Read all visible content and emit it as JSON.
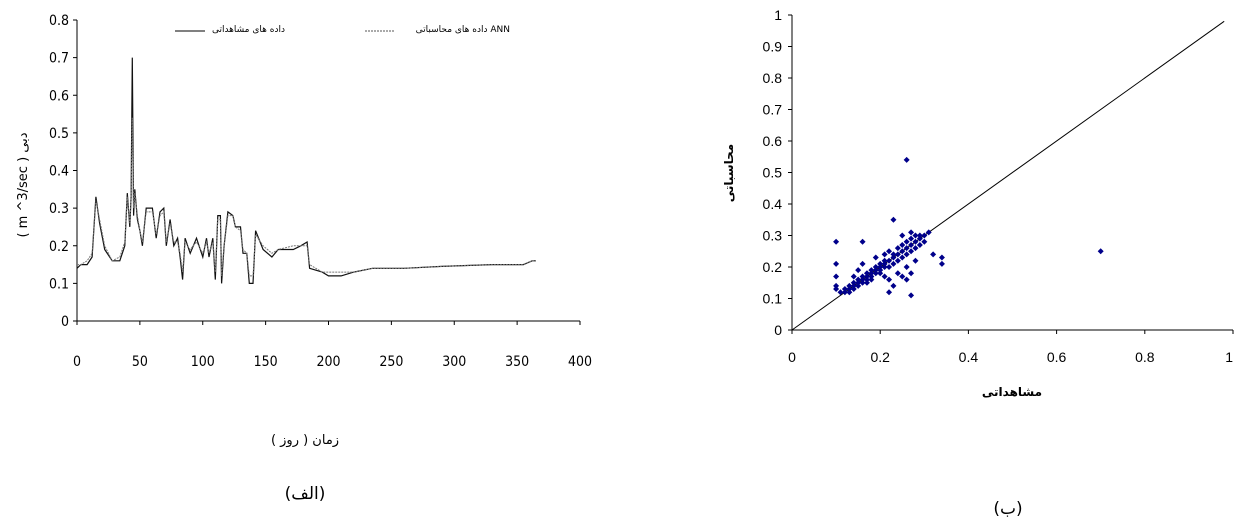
{
  "chart_data": [
    {
      "type": "line",
      "caption": "(الف)",
      "xlabel": "زمان ( روز )",
      "ylabel": "( m ^3/sec ) دبی",
      "xlim": [
        0,
        400
      ],
      "ylim": [
        0,
        0.8
      ],
      "xticks": [
        "0",
        "50",
        "100",
        "150",
        "200",
        "250",
        "300",
        "350",
        "400"
      ],
      "yticks": [
        "0",
        "0.1",
        "0.2",
        "0.3",
        "0.4",
        "0.5",
        "0.6",
        "0.7",
        "0.8"
      ],
      "series": [
        {
          "name": "داده های مشاهداتی",
          "points": [
            [
              0,
              0.14
            ],
            [
              3,
              0.15
            ],
            [
              8,
              0.15
            ],
            [
              12,
              0.17
            ],
            [
              15,
              0.33
            ],
            [
              18,
              0.26
            ],
            [
              22,
              0.19
            ],
            [
              28,
              0.16
            ],
            [
              34,
              0.16
            ],
            [
              38,
              0.2
            ],
            [
              40,
              0.34
            ],
            [
              42,
              0.25
            ],
            [
              43,
              0.33
            ],
            [
              44,
              0.7
            ],
            [
              45,
              0.28
            ],
            [
              46,
              0.35
            ],
            [
              48,
              0.27
            ],
            [
              50,
              0.24
            ],
            [
              52,
              0.2
            ],
            [
              55,
              0.3
            ],
            [
              60,
              0.3
            ],
            [
              63,
              0.22
            ],
            [
              66,
              0.29
            ],
            [
              69,
              0.3
            ],
            [
              71,
              0.2
            ],
            [
              74,
              0.27
            ],
            [
              77,
              0.2
            ],
            [
              80,
              0.22
            ],
            [
              82,
              0.17
            ],
            [
              84,
              0.11
            ],
            [
              86,
              0.22
            ],
            [
              90,
              0.18
            ],
            [
              95,
              0.22
            ],
            [
              100,
              0.17
            ],
            [
              103,
              0.22
            ],
            [
              105,
              0.17
            ],
            [
              108,
              0.22
            ],
            [
              110,
              0.11
            ],
            [
              112,
              0.28
            ],
            [
              114,
              0.28
            ],
            [
              115,
              0.1
            ],
            [
              117,
              0.2
            ],
            [
              120,
              0.29
            ],
            [
              124,
              0.28
            ],
            [
              126,
              0.25
            ],
            [
              130,
              0.25
            ],
            [
              132,
              0.18
            ],
            [
              135,
              0.18
            ],
            [
              137,
              0.1
            ],
            [
              140,
              0.1
            ],
            [
              142,
              0.24
            ],
            [
              148,
              0.19
            ],
            [
              155,
              0.17
            ],
            [
              160,
              0.19
            ],
            [
              172,
              0.19
            ],
            [
              178,
              0.2
            ],
            [
              183,
              0.21
            ],
            [
              185,
              0.14
            ],
            [
              195,
              0.13
            ],
            [
              200,
              0.12
            ],
            [
              210,
              0.12
            ],
            [
              220,
              0.13
            ],
            [
              235,
              0.14
            ],
            [
              240,
              0.14
            ],
            [
              260,
              0.14
            ],
            [
              290,
              0.145
            ],
            [
              330,
              0.15
            ],
            [
              355,
              0.15
            ],
            [
              362,
              0.16
            ],
            [
              365,
              0.16
            ]
          ]
        },
        {
          "name": "داده های محاسباتی ANN",
          "points": [
            [
              0,
              0.15
            ],
            [
              3,
              0.15
            ],
            [
              8,
              0.16
            ],
            [
              12,
              0.18
            ],
            [
              15,
              0.32
            ],
            [
              18,
              0.27
            ],
            [
              22,
              0.2
            ],
            [
              28,
              0.16
            ],
            [
              34,
              0.17
            ],
            [
              38,
              0.21
            ],
            [
              40,
              0.33
            ],
            [
              42,
              0.26
            ],
            [
              43,
              0.32
            ],
            [
              44,
              0.54
            ],
            [
              45,
              0.3
            ],
            [
              46,
              0.34
            ],
            [
              48,
              0.28
            ],
            [
              50,
              0.24
            ],
            [
              52,
              0.21
            ],
            [
              55,
              0.29
            ],
            [
              60,
              0.29
            ],
            [
              63,
              0.23
            ],
            [
              66,
              0.28
            ],
            [
              69,
              0.29
            ],
            [
              71,
              0.21
            ],
            [
              74,
              0.26
            ],
            [
              77,
              0.21
            ],
            [
              80,
              0.21
            ],
            [
              82,
              0.18
            ],
            [
              84,
              0.13
            ],
            [
              86,
              0.21
            ],
            [
              90,
              0.19
            ],
            [
              95,
              0.21
            ],
            [
              100,
              0.18
            ],
            [
              103,
              0.21
            ],
            [
              105,
              0.18
            ],
            [
              108,
              0.21
            ],
            [
              110,
              0.13
            ],
            [
              112,
              0.27
            ],
            [
              114,
              0.27
            ],
            [
              115,
              0.12
            ],
            [
              117,
              0.2
            ],
            [
              120,
              0.28
            ],
            [
              124,
              0.28
            ],
            [
              126,
              0.25
            ],
            [
              130,
              0.24
            ],
            [
              132,
              0.19
            ],
            [
              135,
              0.18
            ],
            [
              137,
              0.12
            ],
            [
              140,
              0.12
            ],
            [
              142,
              0.23
            ],
            [
              148,
              0.2
            ],
            [
              155,
              0.18
            ],
            [
              160,
              0.19
            ],
            [
              172,
              0.2
            ],
            [
              178,
              0.2
            ],
            [
              183,
              0.2
            ],
            [
              185,
              0.15
            ],
            [
              195,
              0.13
            ],
            [
              200,
              0.13
            ],
            [
              210,
              0.13
            ],
            [
              220,
              0.13
            ],
            [
              235,
              0.14
            ],
            [
              240,
              0.14
            ],
            [
              260,
              0.14
            ],
            [
              290,
              0.145
            ],
            [
              330,
              0.15
            ],
            [
              355,
              0.15
            ],
            [
              362,
              0.16
            ],
            [
              365,
              0.16
            ]
          ]
        }
      ]
    },
    {
      "type": "scatter",
      "caption": "(ب)",
      "xlabel": "مشاهداتی",
      "ylabel": "محاسباتی",
      "xlim": [
        0,
        1
      ],
      "ylim": [
        0,
        1
      ],
      "xticks": [
        "0",
        "0.2",
        "0.4",
        "0.6",
        "0.8",
        "1"
      ],
      "yticks": [
        "0",
        "0.1",
        "0.2",
        "0.3",
        "0.4",
        "0.5",
        "0.6",
        "0.7",
        "0.8",
        "0.9",
        "1"
      ],
      "reference_line": [
        [
          0,
          0
        ],
        [
          0.98,
          0.98
        ]
      ],
      "marker_color": "#00008B",
      "points": [
        [
          0.1,
          0.28
        ],
        [
          0.1,
          0.21
        ],
        [
          0.1,
          0.17
        ],
        [
          0.1,
          0.14
        ],
        [
          0.1,
          0.13
        ],
        [
          0.11,
          0.12
        ],
        [
          0.12,
          0.12
        ],
        [
          0.12,
          0.13
        ],
        [
          0.13,
          0.12
        ],
        [
          0.13,
          0.13
        ],
        [
          0.13,
          0.14
        ],
        [
          0.14,
          0.13
        ],
        [
          0.14,
          0.14
        ],
        [
          0.14,
          0.15
        ],
        [
          0.14,
          0.17
        ],
        [
          0.15,
          0.14
        ],
        [
          0.15,
          0.15
        ],
        [
          0.15,
          0.16
        ],
        [
          0.15,
          0.19
        ],
        [
          0.16,
          0.15
        ],
        [
          0.16,
          0.16
        ],
        [
          0.16,
          0.17
        ],
        [
          0.16,
          0.21
        ],
        [
          0.16,
          0.28
        ],
        [
          0.17,
          0.16
        ],
        [
          0.17,
          0.17
        ],
        [
          0.17,
          0.18
        ],
        [
          0.17,
          0.15
        ],
        [
          0.18,
          0.17
        ],
        [
          0.18,
          0.18
        ],
        [
          0.18,
          0.19
        ],
        [
          0.18,
          0.16
        ],
        [
          0.19,
          0.18
        ],
        [
          0.19,
          0.19
        ],
        [
          0.19,
          0.2
        ],
        [
          0.19,
          0.23
        ],
        [
          0.2,
          0.19
        ],
        [
          0.2,
          0.2
        ],
        [
          0.2,
          0.21
        ],
        [
          0.2,
          0.18
        ],
        [
          0.21,
          0.17
        ],
        [
          0.21,
          0.2
        ],
        [
          0.21,
          0.21
        ],
        [
          0.21,
          0.22
        ],
        [
          0.21,
          0.24
        ],
        [
          0.22,
          0.2
        ],
        [
          0.22,
          0.22
        ],
        [
          0.22,
          0.25
        ],
        [
          0.22,
          0.12
        ],
        [
          0.22,
          0.16
        ],
        [
          0.23,
          0.21
        ],
        [
          0.23,
          0.23
        ],
        [
          0.23,
          0.24
        ],
        [
          0.23,
          0.35
        ],
        [
          0.23,
          0.14
        ],
        [
          0.24,
          0.22
        ],
        [
          0.24,
          0.24
        ],
        [
          0.24,
          0.26
        ],
        [
          0.24,
          0.18
        ],
        [
          0.25,
          0.23
        ],
        [
          0.25,
          0.25
        ],
        [
          0.25,
          0.27
        ],
        [
          0.25,
          0.3
        ],
        [
          0.25,
          0.17
        ],
        [
          0.26,
          0.54
        ],
        [
          0.26,
          0.24
        ],
        [
          0.26,
          0.26
        ],
        [
          0.26,
          0.28
        ],
        [
          0.26,
          0.2
        ],
        [
          0.26,
          0.16
        ],
        [
          0.27,
          0.25
        ],
        [
          0.27,
          0.27
        ],
        [
          0.27,
          0.29
        ],
        [
          0.27,
          0.31
        ],
        [
          0.27,
          0.11
        ],
        [
          0.27,
          0.18
        ],
        [
          0.28,
          0.26
        ],
        [
          0.28,
          0.28
        ],
        [
          0.28,
          0.3
        ],
        [
          0.28,
          0.22
        ],
        [
          0.29,
          0.27
        ],
        [
          0.29,
          0.29
        ],
        [
          0.29,
          0.3
        ],
        [
          0.3,
          0.28
        ],
        [
          0.3,
          0.3
        ],
        [
          0.31,
          0.31
        ],
        [
          0.32,
          0.24
        ],
        [
          0.34,
          0.23
        ],
        [
          0.34,
          0.21
        ],
        [
          0.7,
          0.25
        ]
      ]
    }
  ]
}
